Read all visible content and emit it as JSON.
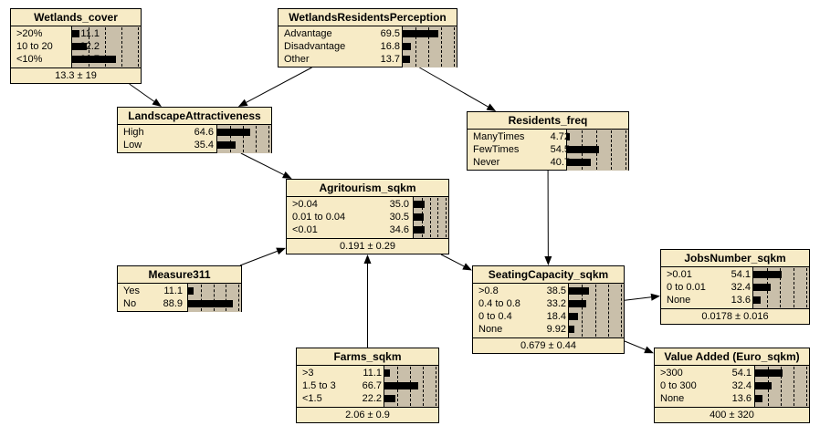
{
  "nodes": [
    {
      "id": "wetlands",
      "title": "Wetlands_cover",
      "footer": "13.3 ± 19",
      "states": [
        {
          "label": ">20%",
          "value": "11.1",
          "pct": 11.1
        },
        {
          "label": "10 to 20",
          "value": "22.2",
          "pct": 22.2
        },
        {
          "label": "<10%",
          "value": "66.7",
          "pct": 66.7
        }
      ]
    },
    {
      "id": "perception",
      "title": "WetlandsResidentsPerception",
      "footer": "",
      "states": [
        {
          "label": "Advantage",
          "value": "69.5",
          "pct": 69.5
        },
        {
          "label": "Disadvantage",
          "value": "16.8",
          "pct": 16.8
        },
        {
          "label": "Other",
          "value": "13.7",
          "pct": 13.7
        }
      ]
    },
    {
      "id": "landscape",
      "title": "LandscapeAttractiveness",
      "footer": "",
      "states": [
        {
          "label": "High",
          "value": "64.6",
          "pct": 64.6
        },
        {
          "label": "Low",
          "value": "35.4",
          "pct": 35.4
        }
      ]
    },
    {
      "id": "residents",
      "title": "Residents_freq",
      "footer": "",
      "states": [
        {
          "label": "ManyTimes",
          "value": "4.72",
          "pct": 4.72
        },
        {
          "label": "FewTimes",
          "value": "54.5",
          "pct": 54.5
        },
        {
          "label": "Never",
          "value": "40.7",
          "pct": 40.7
        }
      ]
    },
    {
      "id": "agritourism",
      "title": "Agritourism_sqkm",
      "footer": "0.191 ± 0.29",
      "states": [
        {
          "label": ">0.04",
          "value": "35.0",
          "pct": 35.0
        },
        {
          "label": "0.01 to 0.04",
          "value": "30.5",
          "pct": 30.5
        },
        {
          "label": "<0.01",
          "value": "34.6",
          "pct": 34.6
        }
      ]
    },
    {
      "id": "measure",
      "title": "Measure311",
      "footer": "",
      "states": [
        {
          "label": "Yes",
          "value": "11.1",
          "pct": 11.1
        },
        {
          "label": "No",
          "value": "88.9",
          "pct": 88.9
        }
      ]
    },
    {
      "id": "seating",
      "title": "SeatingCapacity_sqkm",
      "footer": "0.679 ± 0.44",
      "states": [
        {
          "label": ">0.8",
          "value": "38.5",
          "pct": 38.5
        },
        {
          "label": "0.4 to 0.8",
          "value": "33.2",
          "pct": 33.2
        },
        {
          "label": "0 to 0.4",
          "value": "18.4",
          "pct": 18.4
        },
        {
          "label": "None",
          "value": "9.92",
          "pct": 9.92
        }
      ]
    },
    {
      "id": "jobs",
      "title": "JobsNumber_sqkm",
      "footer": "0.0178 ± 0.016",
      "states": [
        {
          "label": ">0.01",
          "value": "54.1",
          "pct": 54.1
        },
        {
          "label": "0 to 0.01",
          "value": "32.4",
          "pct": 32.4
        },
        {
          "label": "None",
          "value": "13.6",
          "pct": 13.6
        }
      ]
    },
    {
      "id": "farms",
      "title": "Farms_sqkm",
      "footer": "2.06 ± 0.9",
      "states": [
        {
          "label": ">3",
          "value": "11.1",
          "pct": 11.1
        },
        {
          "label": "1.5 to 3",
          "value": "66.7",
          "pct": 66.7
        },
        {
          "label": "<1.5",
          "value": "22.2",
          "pct": 22.2
        }
      ]
    },
    {
      "id": "value",
      "title": "Value Added (Euro_sqkm)",
      "footer": "400 ± 320",
      "states": [
        {
          "label": ">300",
          "value": "54.1",
          "pct": 54.1
        },
        {
          "label": "0 to 300",
          "value": "32.4",
          "pct": 32.4
        },
        {
          "label": "None",
          "value": "13.6",
          "pct": 13.6
        }
      ]
    }
  ],
  "edges": [
    {
      "from": "wetlands",
      "to": "landscape"
    },
    {
      "from": "perception",
      "to": "landscape"
    },
    {
      "from": "perception",
      "to": "residents"
    },
    {
      "from": "landscape",
      "to": "agritourism"
    },
    {
      "from": "measure",
      "to": "agritourism"
    },
    {
      "from": "farms",
      "to": "agritourism"
    },
    {
      "from": "residents",
      "to": "seating"
    },
    {
      "from": "agritourism",
      "to": "seating"
    },
    {
      "from": "seating",
      "to": "jobs"
    },
    {
      "from": "seating",
      "to": "value"
    }
  ]
}
